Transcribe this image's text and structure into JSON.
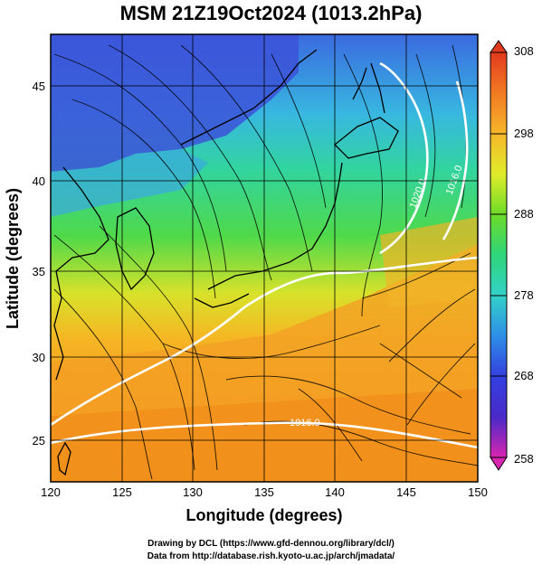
{
  "title": "MSM 21Z19Oct2024 (1013.2hPa)",
  "axes": {
    "xlabel": "Longitude (degrees)",
    "ylabel": "Latitude  (degrees)",
    "x_ticks": [
      "120",
      "125",
      "130",
      "135",
      "140",
      "145",
      "150"
    ],
    "y_ticks": [
      "45",
      "40",
      "35",
      "30",
      "25"
    ]
  },
  "colorbar": {
    "ticks": [
      "308",
      "298",
      "288",
      "278",
      "268",
      "258"
    ],
    "range": [
      258,
      308
    ]
  },
  "isobar_labels": [
    "1020.0",
    "1016.0",
    "1016.0"
  ],
  "credits": {
    "line1": "Drawing by DCL (https://www.gfd-dennou.org/library/dcl/)",
    "line2": "Data from http://database.rish.kyoto-u.ac.jp/arch/jmadata/"
  },
  "chart_data": {
    "type": "heatmap",
    "x_range": [
      120,
      150
    ],
    "y_range": [
      22.5,
      48
    ],
    "value_range": [
      258,
      308
    ],
    "colors": {
      "cold": "#3a3cd8",
      "cool": "#37c8d0",
      "mild": "#2ecc40",
      "warm": "#f3a020",
      "hot": "#e64a1c"
    }
  }
}
